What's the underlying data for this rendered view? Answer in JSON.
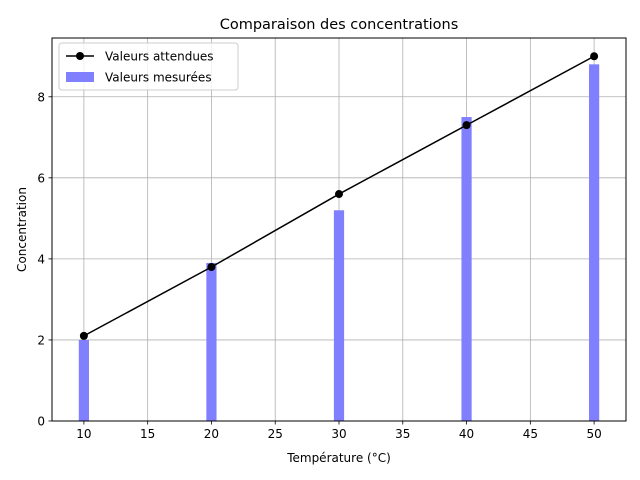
{
  "chart_data": {
    "type": "bar",
    "title": "Comparaison des concentrations",
    "xlabel": "Température (°C)",
    "ylabel": "Concentration",
    "x": [
      10,
      20,
      30,
      40,
      50
    ],
    "xlim": [
      7.5,
      52.5
    ],
    "ylim": [
      0,
      9.45
    ],
    "xticks": [
      10,
      15,
      20,
      25,
      30,
      35,
      40,
      45,
      50
    ],
    "yticks": [
      0,
      2,
      4,
      6,
      8
    ],
    "grid": true,
    "legend_position": "top-left",
    "series": [
      {
        "name": "Valeurs attendues",
        "type": "line",
        "color": "#000000",
        "marker": "circle",
        "values": [
          2.1,
          3.8,
          5.6,
          7.3,
          9.0
        ]
      },
      {
        "name": "Valeurs mesurées",
        "type": "bar",
        "color": "#8080ff",
        "bar_width": 0.8,
        "values": [
          2.0,
          3.9,
          5.2,
          7.5,
          8.8
        ]
      }
    ]
  }
}
